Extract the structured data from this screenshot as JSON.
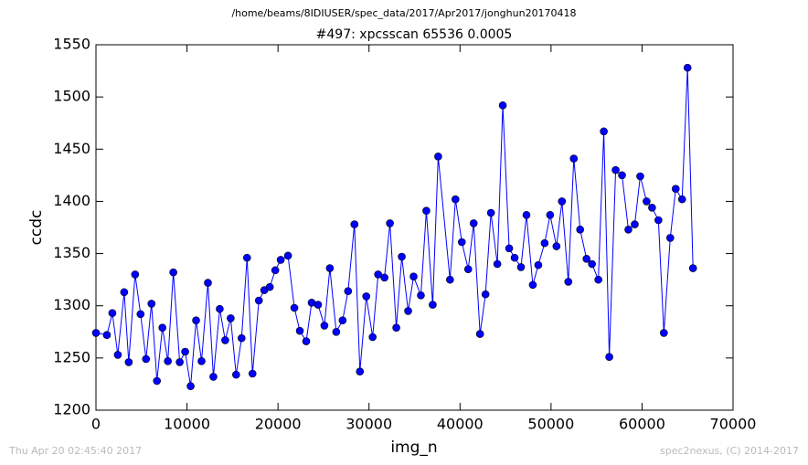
{
  "chart_data": {
    "type": "line",
    "header": "/home/beams/8IDIUSER/spec_data/2017/Apr2017/jonghun20170418",
    "title": "#497: xpcsscan 65536 0.0005",
    "xlabel": "img_n",
    "ylabel": "ccdc",
    "footer_left": "Thu Apr 20 02:45:40 2017",
    "footer_right": "spec2nexus, (C) 2014-2017",
    "color": "#0000ff",
    "x": [
      0,
      1200,
      1800,
      2400,
      3100,
      3600,
      4300,
      4900,
      5500,
      6100,
      6700,
      7300,
      7900,
      8500,
      9200,
      9800,
      10400,
      11000,
      11600,
      12300,
      12900,
      13600,
      14200,
      14800,
      15400,
      16000,
      16600,
      17200,
      17900,
      18500,
      19100,
      19700,
      20300,
      21100,
      21800,
      22400,
      23100,
      23700,
      24400,
      25100,
      25700,
      26400,
      27100,
      27700,
      28400,
      29000,
      29700,
      30400,
      31000,
      31700,
      32300,
      33000,
      33600,
      34300,
      34900,
      35700,
      36300,
      37000,
      37600,
      38900,
      39500,
      40200,
      40900,
      41500,
      42200,
      42800,
      43400,
      44100,
      44700,
      45400,
      46000,
      46700,
      47300,
      48000,
      48600,
      49300,
      49900,
      50600,
      51200,
      51900,
      52500,
      53200,
      53900,
      54500,
      55200,
      55800,
      56400,
      57100,
      57800,
      58500,
      59200,
      59800,
      60500,
      61100,
      61800,
      62400,
      63100,
      63700,
      64400,
      65000,
      65600
    ],
    "values": [
      1274,
      1272,
      1293,
      1253,
      1313,
      1246,
      1330,
      1292,
      1249,
      1302,
      1228,
      1279,
      1247,
      1332,
      1246,
      1256,
      1223,
      1286,
      1247,
      1322,
      1232,
      1297,
      1267,
      1288,
      1234,
      1269,
      1346,
      1235,
      1305,
      1315,
      1318,
      1334,
      1344,
      1348,
      1298,
      1276,
      1266,
      1303,
      1301,
      1281,
      1336,
      1275,
      1286,
      1314,
      1378,
      1237,
      1309,
      1270,
      1330,
      1327,
      1379,
      1279,
      1347,
      1295,
      1328,
      1310,
      1391,
      1301,
      1443,
      1325,
      1402,
      1361,
      1335,
      1379,
      1273,
      1311,
      1389,
      1340,
      1492,
      1355,
      1346,
      1337,
      1387,
      1320,
      1339,
      1360,
      1387,
      1357,
      1400,
      1323,
      1441,
      1373,
      1345,
      1340,
      1325,
      1467,
      1251,
      1430,
      1425,
      1373,
      1378,
      1424,
      1400,
      1394,
      1382,
      1274,
      1365,
      1412,
      1402,
      1528,
      1336
    ],
    "xlim": [
      0,
      70000
    ],
    "xticks": [
      0,
      10000,
      20000,
      30000,
      40000,
      50000,
      60000,
      70000
    ],
    "ylim": [
      1200,
      1550
    ],
    "yticks": [
      1200,
      1250,
      1300,
      1350,
      1400,
      1450,
      1500,
      1550
    ]
  }
}
